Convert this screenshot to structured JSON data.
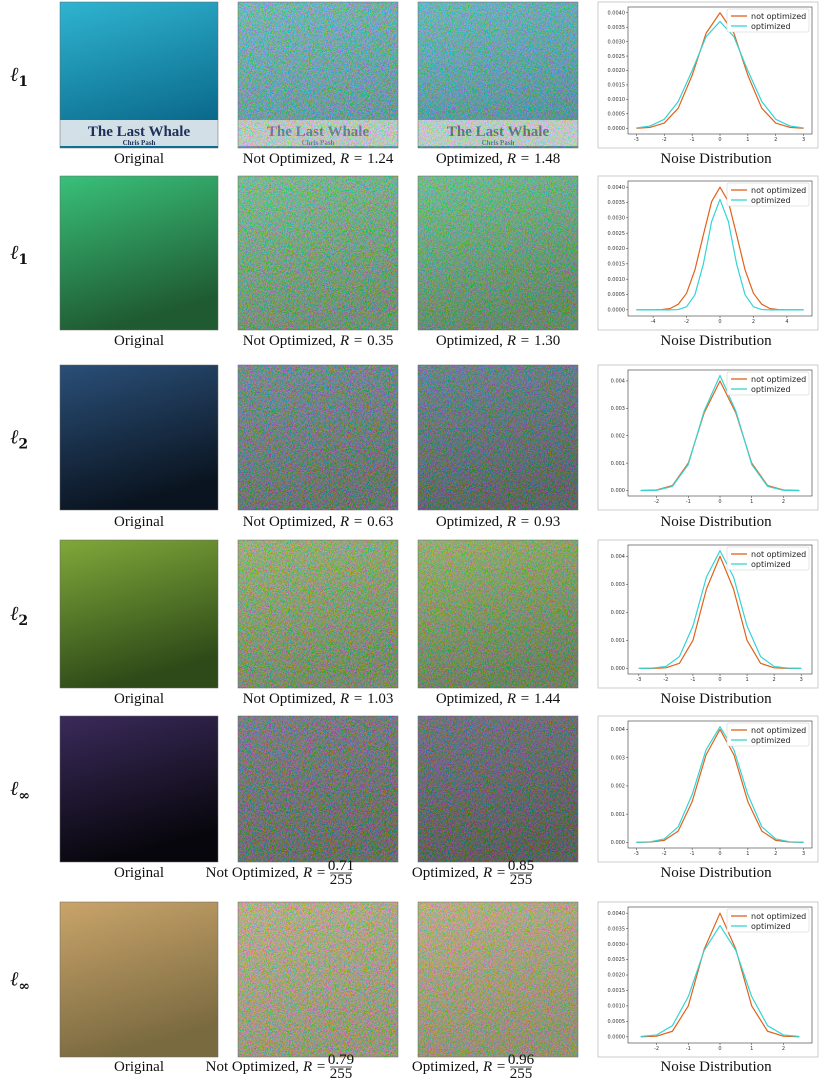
{
  "rows": [
    {
      "label": {
        "symbol": "ℓ",
        "sub": "1"
      },
      "image_text": [
        "The Last Whale",
        "Chris Pash"
      ],
      "captions": [
        {
          "text": "Original"
        },
        {
          "prefix": "Not Optimized,",
          "r": "R =",
          "value": "1.24"
        },
        {
          "prefix": "Optimized,",
          "r": "R =",
          "value": "1.48"
        }
      ]
    },
    {
      "label": {
        "symbol": "ℓ",
        "sub": "1"
      },
      "captions": [
        {
          "text": "Original"
        },
        {
          "prefix": "Not Optimized,",
          "r": "R =",
          "value": "0.35"
        },
        {
          "prefix": "Optimized,",
          "r": "R =",
          "value": "1.30"
        }
      ]
    },
    {
      "label": {
        "symbol": "ℓ",
        "sub": "2"
      },
      "captions": [
        {
          "text": "Original"
        },
        {
          "prefix": "Not Optimized,",
          "r": "R =",
          "value": "0.63"
        },
        {
          "prefix": "Optimized,",
          "r": "R =",
          "value": "0.93"
        }
      ]
    },
    {
      "label": {
        "symbol": "ℓ",
        "sub": "2"
      },
      "captions": [
        {
          "text": "Original"
        },
        {
          "prefix": "Not Optimized,",
          "r": "R =",
          "value": "1.03"
        },
        {
          "prefix": "Optimized,",
          "r": "R =",
          "value": "1.44"
        }
      ]
    },
    {
      "label": {
        "symbol": "ℓ",
        "sub": "∞"
      },
      "captions": [
        {
          "text": "Original"
        },
        {
          "prefix": "Not Optimized,",
          "r": "R =",
          "value": {
            "num": "0.71",
            "den": "255"
          }
        },
        {
          "prefix": "Optimized,",
          "r": "R =",
          "value": {
            "num": "0.85",
            "den": "255"
          }
        }
      ]
    },
    {
      "label": {
        "symbol": "ℓ",
        "sub": "∞"
      },
      "captions": [
        {
          "text": "Original"
        },
        {
          "prefix": "Not Optimized,",
          "r": "R =",
          "value": {
            "num": "0.79",
            "den": "255"
          }
        },
        {
          "prefix": "Optimized,",
          "r": "R =",
          "value": {
            "num": "0.96",
            "den": "255"
          }
        }
      ]
    }
  ],
  "chart_data": [
    {
      "type": "line",
      "caption": "Noise Distribution",
      "legend": "upper right",
      "x": [
        -3,
        -2.5,
        -2,
        -1.5,
        -1,
        -0.5,
        0,
        0.5,
        1,
        1.5,
        2,
        2.5,
        3
      ],
      "series": [
        {
          "name": "not optimized",
          "color": "#e0621c",
          "values": [
            0,
            3e-05,
            0.00018,
            0.00069,
            0.00183,
            0.00329,
            0.004,
            0.00329,
            0.00183,
            0.00069,
            0.00018,
            3e-05,
            0
          ]
        },
        {
          "name": "optimized",
          "color": "#35d4d4",
          "values": [
            1e-05,
            8e-05,
            0.00031,
            0.00092,
            0.00199,
            0.00317,
            0.0037,
            0.00317,
            0.00199,
            0.00092,
            0.00031,
            8e-05,
            1e-05
          ]
        }
      ],
      "xlim": [
        -3.3,
        3.3
      ],
      "xticks": [
        -3,
        -2,
        -1,
        0,
        1,
        2,
        3
      ],
      "ylim": [
        -0.0002,
        0.0042
      ],
      "yticks": [
        {
          "value": 0,
          "label": "0.0000"
        },
        {
          "value": 0.0005,
          "label": "0.0005"
        },
        {
          "value": 0.001,
          "label": "0.0010"
        },
        {
          "value": 0.0015,
          "label": "0.0015"
        },
        {
          "value": 0.002,
          "label": "0.0020"
        },
        {
          "value": 0.0025,
          "label": "0.0025"
        },
        {
          "value": 0.003,
          "label": "0.0030"
        },
        {
          "value": 0.0035,
          "label": "0.0035"
        },
        {
          "value": 0.004,
          "label": "0.0040"
        }
      ]
    },
    {
      "type": "line",
      "caption": "Noise Distribution",
      "legend": "upper right",
      "x": [
        -5,
        -4.5,
        -4,
        -3.5,
        -3,
        -2.5,
        -2,
        -1.5,
        -1,
        -0.5,
        0,
        0.5,
        1,
        1.5,
        2,
        2.5,
        3,
        3.5,
        4,
        4.5,
        5
      ],
      "series": [
        {
          "name": "not optimized",
          "color": "#e0621c",
          "values": [
            0,
            0,
            0,
            1e-05,
            4e-05,
            0.00018,
            0.00054,
            0.0013,
            0.00243,
            0.00353,
            0.004,
            0.00353,
            0.00243,
            0.0013,
            0.00054,
            0.00018,
            4e-05,
            1e-05,
            0,
            0,
            0
          ]
        },
        {
          "name": "optimized",
          "color": "#35d4d4",
          "values": [
            0,
            0,
            0,
            0,
            0,
            1e-05,
            0.0001,
            0.00049,
            0.00148,
            0.00288,
            0.0036,
            0.00288,
            0.00148,
            0.00049,
            0.0001,
            1e-05,
            0,
            0,
            0,
            0,
            0
          ]
        }
      ],
      "xlim": [
        -5.5,
        5.5
      ],
      "xticks": [
        -4,
        -2,
        0,
        2,
        4
      ],
      "ylim": [
        -0.0002,
        0.0042
      ],
      "yticks": [
        {
          "value": 0,
          "label": "0.0000"
        },
        {
          "value": 0.0005,
          "label": "0.0005"
        },
        {
          "value": 0.001,
          "label": "0.0010"
        },
        {
          "value": 0.0015,
          "label": "0.0015"
        },
        {
          "value": 0.002,
          "label": "0.0020"
        },
        {
          "value": 0.0025,
          "label": "0.0025"
        },
        {
          "value": 0.003,
          "label": "0.0030"
        },
        {
          "value": 0.0035,
          "label": "0.0035"
        },
        {
          "value": 0.004,
          "label": "0.0040"
        }
      ]
    },
    {
      "type": "line",
      "caption": "Noise Distribution",
      "legend": "upper right",
      "x": [
        -2.5,
        -2,
        -1.5,
        -1,
        -0.5,
        0,
        0.5,
        1,
        1.5,
        2,
        2.5
      ],
      "series": [
        {
          "name": "not optimized",
          "color": "#e0621c",
          "values": [
            0,
            2e-05,
            0.00018,
            0.001,
            0.00283,
            0.004,
            0.00283,
            0.001,
            0.00018,
            2e-05,
            0
          ]
        },
        {
          "name": "optimized",
          "color": "#35d4d4",
          "values": [
            0,
            1e-05,
            0.00015,
            0.00095,
            0.0029,
            0.0042,
            0.0029,
            0.00095,
            0.00015,
            1e-05,
            0
          ]
        }
      ],
      "xlim": [
        -2.9,
        2.9
      ],
      "xticks": [
        -2,
        -1,
        0,
        1,
        2
      ],
      "ylim": [
        -0.0002,
        0.0044
      ],
      "yticks": [
        {
          "value": 0,
          "label": "0.000"
        },
        {
          "value": 0.001,
          "label": "0.001"
        },
        {
          "value": 0.002,
          "label": "0.002"
        },
        {
          "value": 0.003,
          "label": "0.003"
        },
        {
          "value": 0.004,
          "label": "0.004"
        }
      ]
    },
    {
      "type": "line",
      "caption": "Noise Distribution",
      "legend": "upper right",
      "x": [
        -3,
        -2.5,
        -2,
        -1.5,
        -1,
        -0.5,
        0,
        0.5,
        1,
        1.5,
        2,
        2.5,
        3
      ],
      "series": [
        {
          "name": "not optimized",
          "color": "#e0621c",
          "values": [
            0,
            0,
            2e-05,
            0.00018,
            0.001,
            0.00283,
            0.004,
            0.00283,
            0.001,
            0.00018,
            2e-05,
            0,
            0
          ]
        },
        {
          "name": "optimized",
          "color": "#35d4d4",
          "values": [
            0,
            1e-05,
            7e-05,
            0.00042,
            0.00151,
            0.00326,
            0.0042,
            0.00326,
            0.00151,
            0.00042,
            7e-05,
            1e-05,
            0
          ]
        }
      ],
      "xlim": [
        -3.4,
        3.4
      ],
      "xticks": [
        -3,
        -2,
        -1,
        0,
        1,
        2,
        3
      ],
      "ylim": [
        -0.0002,
        0.0044
      ],
      "yticks": [
        {
          "value": 0,
          "label": "0.000"
        },
        {
          "value": 0.001,
          "label": "0.001"
        },
        {
          "value": 0.002,
          "label": "0.002"
        },
        {
          "value": 0.003,
          "label": "0.003"
        },
        {
          "value": 0.004,
          "label": "0.004"
        }
      ]
    },
    {
      "type": "line",
      "caption": "Noise Distribution",
      "legend": "upper right",
      "x": [
        -3,
        -2.5,
        -2,
        -1.5,
        -1,
        -0.5,
        0,
        0.5,
        1,
        1.5,
        2,
        2.5,
        3
      ],
      "series": [
        {
          "name": "not optimized",
          "color": "#e0621c",
          "values": [
            0,
            1e-05,
            7e-05,
            0.0004,
            0.00144,
            0.0031,
            0.004,
            0.0031,
            0.00144,
            0.0004,
            7e-05,
            1e-05,
            0
          ]
        },
        {
          "name": "optimized",
          "color": "#35d4d4",
          "values": [
            0,
            2e-05,
            0.00012,
            0.00055,
            0.00169,
            0.00328,
            0.0041,
            0.00328,
            0.00169,
            0.00055,
            0.00012,
            2e-05,
            0
          ]
        }
      ],
      "xlim": [
        -3.3,
        3.3
      ],
      "xticks": [
        -3,
        -2,
        -1,
        0,
        1,
        2,
        3
      ],
      "ylim": [
        -0.0002,
        0.0043
      ],
      "yticks": [
        {
          "value": 0,
          "label": "0.000"
        },
        {
          "value": 0.001,
          "label": "0.001"
        },
        {
          "value": 0.002,
          "label": "0.002"
        },
        {
          "value": 0.003,
          "label": "0.003"
        },
        {
          "value": 0.004,
          "label": "0.004"
        }
      ]
    },
    {
      "type": "line",
      "caption": "Noise Distribution",
      "legend": "upper right",
      "x": [
        -2.5,
        -2,
        -1.5,
        -1,
        -0.5,
        0,
        0.5,
        1,
        1.5,
        2,
        2.5
      ],
      "series": [
        {
          "name": "not optimized",
          "color": "#e0621c",
          "values": [
            0,
            2e-05,
            0.00018,
            0.001,
            0.00283,
            0.004,
            0.00283,
            0.001,
            0.00018,
            2e-05,
            0
          ]
        },
        {
          "name": "optimized",
          "color": "#35d4d4",
          "values": [
            1e-05,
            6e-05,
            0.00036,
            0.0013,
            0.00279,
            0.0036,
            0.00279,
            0.0013,
            0.00036,
            6e-05,
            1e-05
          ]
        }
      ],
      "xlim": [
        -2.9,
        2.9
      ],
      "xticks": [
        -2,
        -1,
        0,
        1,
        2
      ],
      "ylim": [
        -0.0002,
        0.0042
      ],
      "yticks": [
        {
          "value": 0,
          "label": "0.0000"
        },
        {
          "value": 0.0005,
          "label": "0.0005"
        },
        {
          "value": 0.001,
          "label": "0.0010"
        },
        {
          "value": 0.0015,
          "label": "0.0015"
        },
        {
          "value": 0.002,
          "label": "0.0020"
        },
        {
          "value": 0.0025,
          "label": "0.0025"
        },
        {
          "value": 0.003,
          "label": "0.0030"
        },
        {
          "value": 0.0035,
          "label": "0.0035"
        },
        {
          "value": 0.004,
          "label": "0.0040"
        }
      ]
    }
  ]
}
